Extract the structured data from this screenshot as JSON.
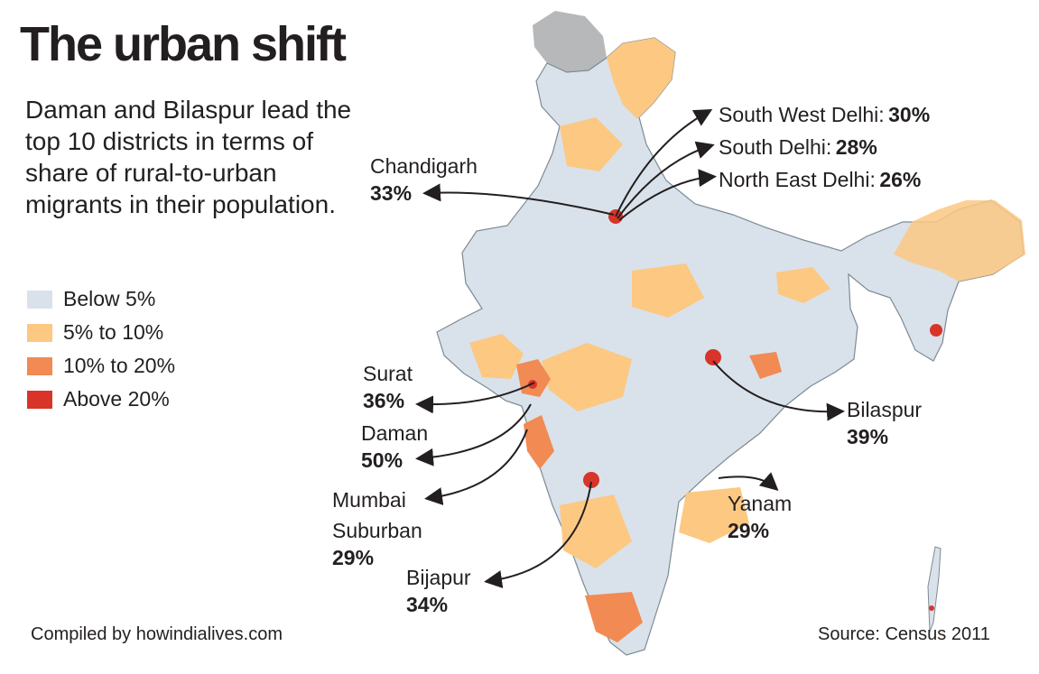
{
  "title": "The urban shift",
  "subtitle": "Daman and Bilaspur lead the top 10 districts in terms of share of rural-to-urban migrants in their population.",
  "legend": [
    {
      "label": "Below 5%",
      "color": "#d9e2ea"
    },
    {
      "label": "5% to 10%",
      "color": "#fcc882"
    },
    {
      "label": "10% to 20%",
      "color": "#f28a53"
    },
    {
      "label": "Above 20%",
      "color": "#d8342a"
    }
  ],
  "colors": {
    "no_data": "#b7b8ba",
    "border": "#ffffff",
    "outline": "#7e8a94",
    "text": "#231f20"
  },
  "districts": {
    "sw_delhi": {
      "name": "South West Delhi:",
      "value": "30%"
    },
    "s_delhi": {
      "name": "South Delhi:",
      "value": "28%"
    },
    "ne_delhi": {
      "name": "North East Delhi:",
      "value": "26%"
    },
    "chandigarh": {
      "name": "Chandigarh",
      "value": "33%"
    },
    "surat": {
      "name": "Surat",
      "value": "36%"
    },
    "daman": {
      "name": "Daman",
      "value": "50%"
    },
    "mumbai": {
      "name": "Mumbai",
      "name2": "Suburban",
      "value": "29%"
    },
    "bijapur": {
      "name": "Bijapur",
      "value": "34%"
    },
    "bilaspur": {
      "name": "Bilaspur",
      "value": "39%"
    },
    "yanam": {
      "name": "Yanam",
      "value": "29%"
    }
  },
  "credit": "Compiled by howindialives.com",
  "source": "Source: Census 2011"
}
